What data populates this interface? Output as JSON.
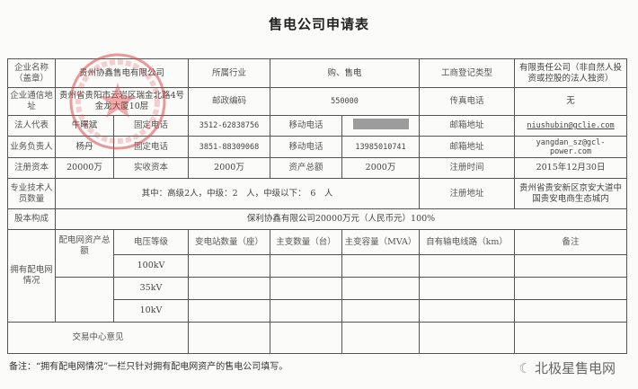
{
  "title": "售电公司申请表",
  "rows": {
    "name_label": "企业名称（盖章）",
    "name": "贵州协鑫售电有限公司",
    "industry_label": "所属行业",
    "industry": "购、售电",
    "reg_type_label": "工商登记类型",
    "reg_type": "有限责任公司（非自然人投资或控股的法人独资）",
    "addr_label": "企业通信地址",
    "addr": "贵州省贵阳市云岩区瑞金北路4号金龙大厦10层",
    "postcode_label": "邮政编码",
    "postcode": "550000",
    "fax_label": "传真电话",
    "fax": "无",
    "legal_label": "法人代表",
    "legal": "牛曙斌",
    "tel_label": "固定电话",
    "legal_tel": "3512-62838756",
    "mobile_label": "移动电话",
    "email_label": "邮箱地址",
    "legal_email": "niushubin@gclie.com",
    "biz_label": "业务负责人",
    "biz": "杨丹",
    "biz_tel": "3851-88309068",
    "biz_mobile": "13985010741",
    "biz_email": "yangdan_sz@gcl-power.com",
    "capital_label": "注册资本",
    "capital": "20000万",
    "paid_label": "实收资本",
    "paid": "2000万",
    "assets_label": "资产总额",
    "assets": "2000万",
    "regtime_label": "注册时间",
    "regtime": "2015年12月30日",
    "staff_label": "专业技术人员数量",
    "staff": "其中：高级2人，中级：2　人，中级以下：　6　人",
    "regaddr_label": "注册地址",
    "regaddr": "贵州省贵安新区京安大道中国贵安电商生态城内",
    "equity_label": "股本构成",
    "equity": "保利协鑫有限公司20000万元（人民币元）100%"
  },
  "grid": {
    "section_label": "拥有配电网情况",
    "asset_label": "配电网资产总额",
    "headers": [
      "电压等级",
      "变电站数量（座）",
      "主变数量（台）",
      "主变容量（MVA）",
      "自有输电线路（km）",
      "备注"
    ],
    "voltages": [
      "100kV",
      "35kV",
      "10kV"
    ],
    "opinion_label": "交易中心意见"
  },
  "note": "备注：“拥有配电网情况”一栏只针对拥有配电网资产的售电公司填写。",
  "watermark": "北极星售电网",
  "stamp_text": "贵州协鑫售电有限公司"
}
